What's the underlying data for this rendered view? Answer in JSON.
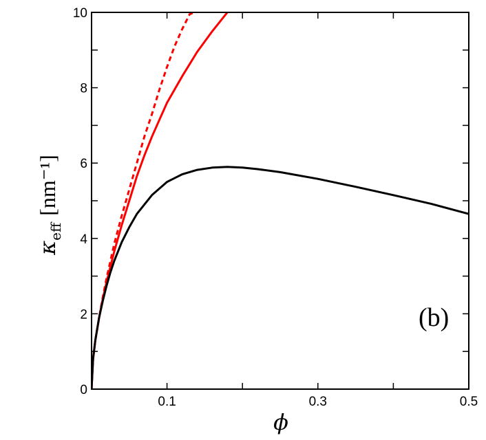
{
  "chart_data": {
    "type": "line",
    "xlabel": "ϕ",
    "ylabel_symbol": "κ",
    "ylabel_subscript": "eff",
    "ylabel_unit": "[nm⁻¹]",
    "panel_label": "(b)",
    "xlim": [
      0,
      0.5
    ],
    "ylim": [
      0,
      10
    ],
    "x_ticks": [
      0.1,
      0.3,
      0.5
    ],
    "x_tick_labels": [
      "0.1",
      "0.3",
      "0.5"
    ],
    "x_minor_ticks": [
      0.1,
      0.2,
      0.3,
      0.4
    ],
    "y_ticks": [
      0,
      2,
      4,
      6,
      8,
      10
    ],
    "y_tick_labels": [
      "0",
      "2",
      "4",
      "6",
      "8",
      "10"
    ],
    "y_minor_ticks": [
      1,
      3,
      5,
      7,
      9
    ],
    "grid": false,
    "series": [
      {
        "color": "#ff0000",
        "style": "dashed",
        "x": [
          0,
          0.002,
          0.005,
          0.01,
          0.015,
          0.02,
          0.025,
          0.03,
          0.04,
          0.05,
          0.06,
          0.07,
          0.08,
          0.09,
          0.1,
          0.11,
          0.12,
          0.13,
          0.136
        ],
        "y": [
          0,
          0.8,
          1.3,
          1.9,
          2.45,
          2.95,
          3.4,
          3.85,
          4.6,
          5.3,
          6.0,
          6.7,
          7.3,
          7.95,
          8.55,
          9.1,
          9.55,
          9.95,
          10.0
        ]
      },
      {
        "color": "#ff0000",
        "style": "solid",
        "x": [
          0,
          0.002,
          0.005,
          0.01,
          0.015,
          0.02,
          0.025,
          0.03,
          0.04,
          0.05,
          0.06,
          0.07,
          0.08,
          0.09,
          0.1,
          0.12,
          0.14,
          0.16,
          0.18
        ],
        "y": [
          0,
          0.8,
          1.3,
          1.9,
          2.4,
          2.85,
          3.25,
          3.65,
          4.35,
          5.0,
          5.65,
          6.2,
          6.7,
          7.15,
          7.6,
          8.3,
          8.95,
          9.5,
          10.0
        ]
      },
      {
        "color": "#000000",
        "style": "solid",
        "x": [
          0,
          0.002,
          0.005,
          0.01,
          0.015,
          0.02,
          0.025,
          0.03,
          0.04,
          0.05,
          0.06,
          0.08,
          0.1,
          0.12,
          0.14,
          0.16,
          0.18,
          0.2,
          0.22,
          0.25,
          0.3,
          0.35,
          0.4,
          0.45,
          0.5
        ],
        "y": [
          0,
          0.8,
          1.3,
          1.9,
          2.35,
          2.75,
          3.1,
          3.4,
          3.9,
          4.3,
          4.65,
          5.15,
          5.5,
          5.7,
          5.82,
          5.88,
          5.9,
          5.88,
          5.84,
          5.76,
          5.58,
          5.37,
          5.15,
          4.92,
          4.65
        ]
      }
    ]
  }
}
